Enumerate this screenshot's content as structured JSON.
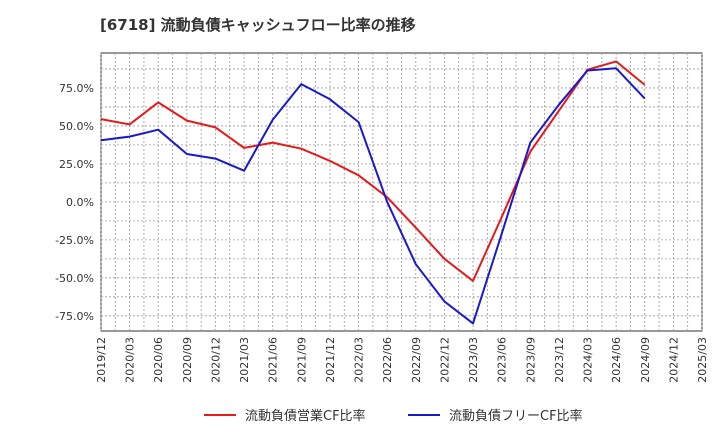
{
  "chart_data": {
    "type": "line",
    "title": "[6718]  流動負債キャッシュフロー比率の推移",
    "x_categories": [
      "2019/12",
      "2020/03",
      "2020/06",
      "2020/09",
      "2020/12",
      "2021/03",
      "2021/06",
      "2021/09",
      "2021/12",
      "2022/03",
      "2022/06",
      "2022/09",
      "2022/12",
      "2023/03",
      "2023/06",
      "2023/09",
      "2023/12",
      "2024/03",
      "2024/06",
      "2024/09",
      "2024/12",
      "2025/03"
    ],
    "ylim": [
      -85,
      98
    ],
    "y_ticks": [
      {
        "value": 75,
        "label": "75.0%"
      },
      {
        "value": 50,
        "label": "50.0%"
      },
      {
        "value": 25,
        "label": "25.0%"
      },
      {
        "value": 0,
        "label": "0.0%"
      },
      {
        "value": -25,
        "label": "-25.0%"
      },
      {
        "value": -50,
        "label": "-50.0%"
      },
      {
        "value": -75,
        "label": "-75.0%"
      }
    ],
    "grid": true,
    "legend_position": "bottom",
    "series": [
      {
        "name": "流動負債営業CF比率",
        "color": "#e41a1c",
        "values": [
          54.5,
          51.0,
          65.5,
          53.5,
          49.0,
          35.5,
          39.0,
          35.0,
          27.0,
          17.5,
          3.0,
          -17.0,
          -37.5,
          -52.0,
          -10.0,
          33.0,
          60.0,
          87.0,
          92.5,
          77.0,
          null,
          null
        ]
      },
      {
        "name": "流動負債フリーCF比率",
        "color": "#1a1acc",
        "values": [
          40.5,
          43.0,
          47.5,
          31.5,
          28.5,
          20.5,
          54.0,
          77.5,
          67.5,
          52.5,
          0.0,
          -41.0,
          -65.5,
          -80.0,
          -21.0,
          39.0,
          64.0,
          86.5,
          88.0,
          68.0,
          null,
          null
        ]
      }
    ]
  }
}
